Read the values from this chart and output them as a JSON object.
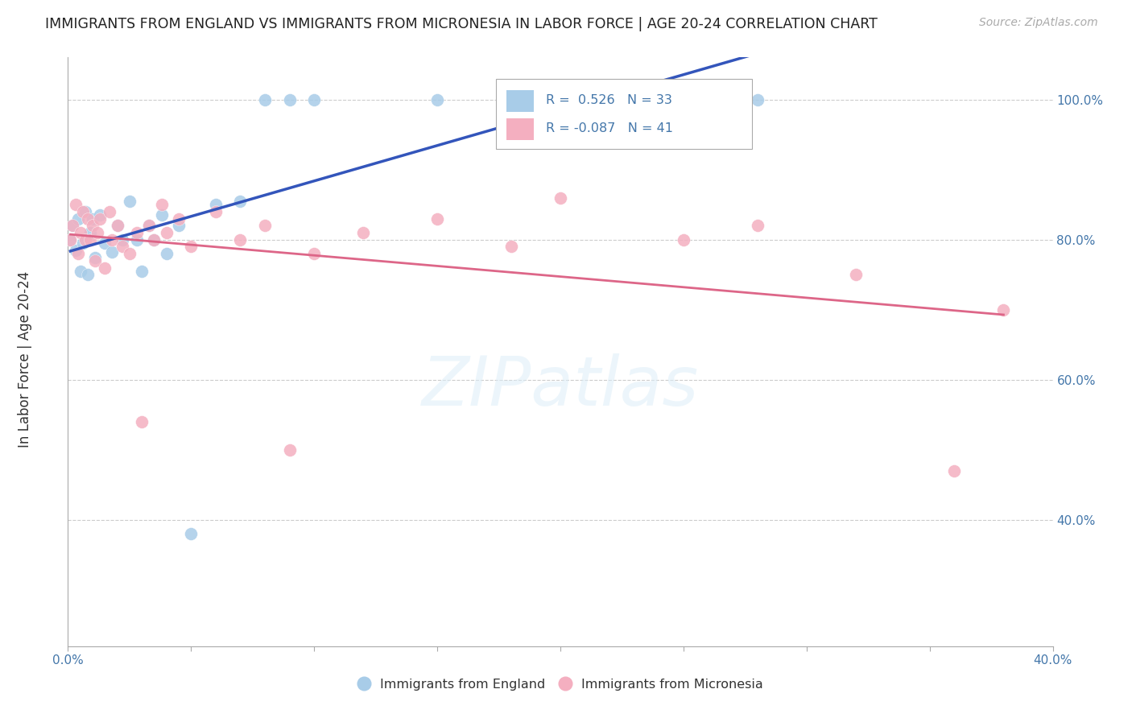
{
  "title": "IMMIGRANTS FROM ENGLAND VS IMMIGRANTS FROM MICRONESIA IN LABOR FORCE | AGE 20-24 CORRELATION CHART",
  "source": "Source: ZipAtlas.com",
  "ylabel": "In Labor Force | Age 20-24",
  "england_R": 0.526,
  "england_N": 33,
  "micronesia_R": -0.087,
  "micronesia_N": 41,
  "england_color": "#a8cce8",
  "micronesia_color": "#f4afc0",
  "england_line_color": "#3355bb",
  "micronesia_line_color": "#dd6688",
  "england_x": [
    0.001,
    0.002,
    0.003,
    0.004,
    0.005,
    0.006,
    0.007,
    0.008,
    0.009,
    0.01,
    0.011,
    0.013,
    0.015,
    0.018,
    0.02,
    0.022,
    0.025,
    0.028,
    0.03,
    0.033,
    0.035,
    0.038,
    0.04,
    0.045,
    0.05,
    0.06,
    0.07,
    0.08,
    0.09,
    0.1,
    0.15,
    0.22,
    0.28
  ],
  "england_y": [
    0.8,
    0.82,
    0.785,
    0.83,
    0.755,
    0.795,
    0.84,
    0.75,
    0.81,
    0.83,
    0.775,
    0.835,
    0.795,
    0.783,
    0.82,
    0.8,
    0.855,
    0.8,
    0.755,
    0.82,
    0.8,
    0.835,
    0.78,
    0.82,
    0.38,
    0.85,
    0.855,
    1.0,
    1.0,
    1.0,
    1.0,
    1.0,
    1.0
  ],
  "micronesia_x": [
    0.001,
    0.002,
    0.003,
    0.004,
    0.005,
    0.006,
    0.007,
    0.008,
    0.009,
    0.01,
    0.011,
    0.012,
    0.013,
    0.015,
    0.017,
    0.018,
    0.02,
    0.022,
    0.025,
    0.028,
    0.03,
    0.033,
    0.035,
    0.038,
    0.04,
    0.045,
    0.05,
    0.06,
    0.07,
    0.08,
    0.09,
    0.1,
    0.12,
    0.15,
    0.18,
    0.2,
    0.25,
    0.28,
    0.32,
    0.36,
    0.38
  ],
  "micronesia_y": [
    0.8,
    0.82,
    0.85,
    0.78,
    0.81,
    0.84,
    0.8,
    0.83,
    0.8,
    0.82,
    0.77,
    0.81,
    0.83,
    0.76,
    0.84,
    0.8,
    0.82,
    0.79,
    0.78,
    0.81,
    0.54,
    0.82,
    0.8,
    0.85,
    0.81,
    0.83,
    0.79,
    0.84,
    0.8,
    0.82,
    0.5,
    0.78,
    0.81,
    0.83,
    0.79,
    0.86,
    0.8,
    0.82,
    0.75,
    0.47,
    0.7
  ],
  "xlim": [
    0.0,
    0.4
  ],
  "ylim": [
    0.22,
    1.06
  ],
  "yticks": [
    0.4,
    0.6,
    0.8,
    1.0
  ],
  "ytick_labels": [
    "40.0%",
    "60.0%",
    "80.0%",
    "100.0%"
  ],
  "xticks": [
    0.0,
    0.05,
    0.1,
    0.15,
    0.2,
    0.25,
    0.3,
    0.35,
    0.4
  ],
  "grid_color": "#cccccc",
  "background_color": "#ffffff",
  "fig_width": 14.06,
  "fig_height": 8.92
}
